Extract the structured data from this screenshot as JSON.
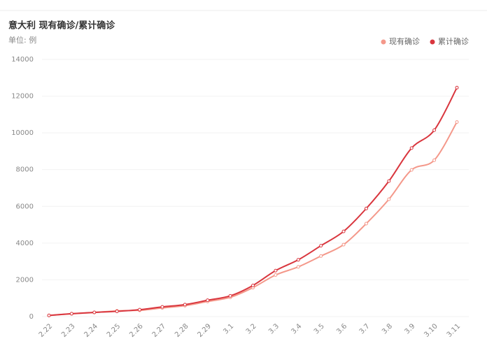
{
  "chart_data": {
    "type": "line",
    "title": "意大利 现有确诊/累计确诊",
    "unit_label": "单位: 例",
    "categories": [
      "2.22",
      "2.23",
      "2.24",
      "2.25",
      "2.26",
      "2.27",
      "2.28",
      "2.29",
      "3.1",
      "3.2",
      "3.3",
      "3.4",
      "3.5",
      "3.6",
      "3.7",
      "3.8",
      "3.9",
      "3.10",
      "3.11"
    ],
    "series": [
      {
        "name": "现有确诊",
        "color": "#f4988a",
        "values": [
          60,
          150,
          221,
          311,
          340,
          470,
          593,
          821,
          1049,
          1577,
          2263,
          2706,
          3296,
          3916,
          5061,
          6387,
          7985,
          8514,
          10590
        ]
      },
      {
        "name": "累计确诊",
        "color": "#d9363e",
        "values": [
          62,
          155,
          229,
          283,
          374,
          528,
          650,
          888,
          1128,
          1694,
          2502,
          3089,
          3858,
          4636,
          5883,
          7375,
          9172,
          10149,
          12462
        ]
      }
    ],
    "ylim": [
      0,
      14000
    ],
    "yticks": [
      0,
      2000,
      4000,
      6000,
      8000,
      10000,
      12000,
      14000
    ],
    "grid": true,
    "legend": "top-right"
  }
}
